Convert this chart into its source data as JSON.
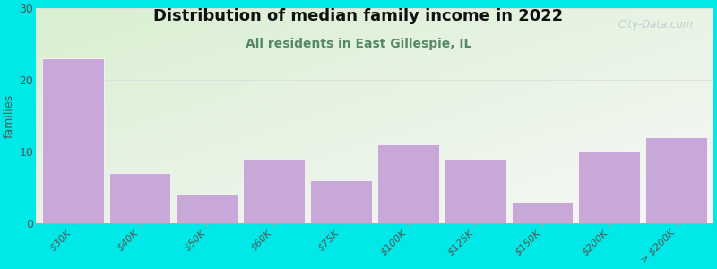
{
  "title": "Distribution of median family income in 2022",
  "subtitle": "All residents in East Gillespie, IL",
  "ylabel": "families",
  "categories": [
    "$30K",
    "$40K",
    "$50K",
    "$60K",
    "$75K",
    "$100K",
    "$125K",
    "$150K",
    "$200K",
    "> $200K"
  ],
  "values": [
    23,
    7,
    4,
    9,
    6,
    11,
    9,
    3,
    10,
    12
  ],
  "bar_color": "#c8a8d8",
  "bar_edgecolor": "#ffffff",
  "ylim": [
    0,
    30
  ],
  "yticks": [
    0,
    10,
    20,
    30
  ],
  "background_color": "#00e8e8",
  "plot_bg_topleft": "#d8efd0",
  "plot_bg_bottomright": "#f8f8f8",
  "title_fontsize": 13,
  "subtitle_fontsize": 10,
  "subtitle_color": "#558866",
  "watermark": "City-Data.com",
  "watermark_color": "#bbcccc",
  "title_color": "#111111"
}
